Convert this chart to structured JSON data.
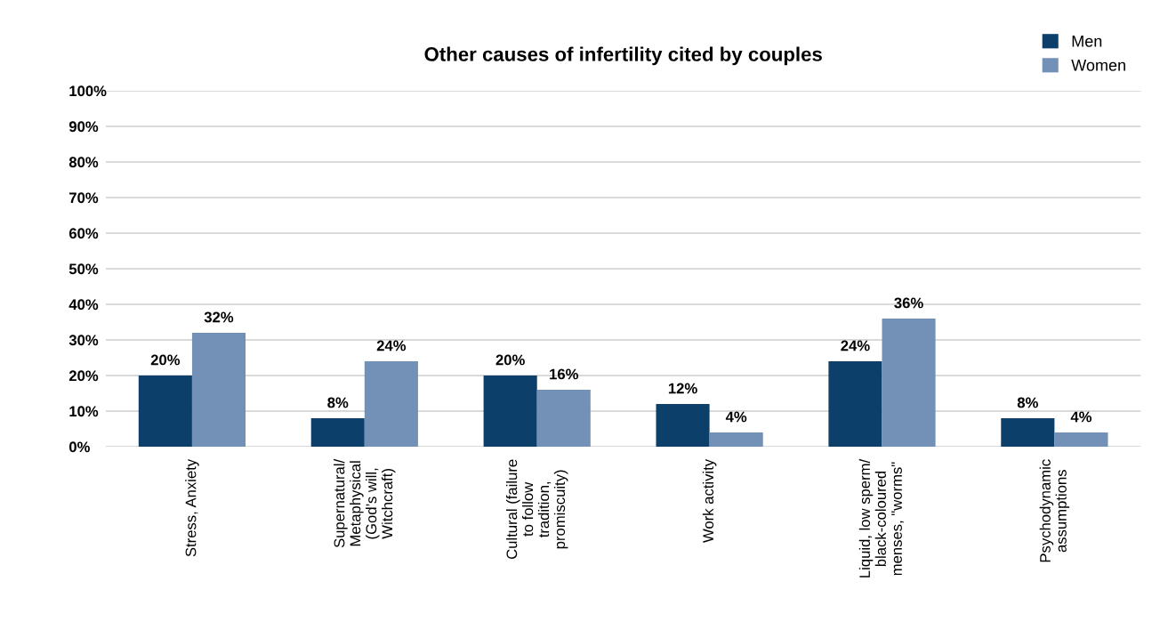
{
  "chart_data": {
    "type": "bar",
    "title": "Other causes of infertility cited by couples",
    "categories": [
      "Stress, Anxiety",
      "Supernatural/\nMetaphysical\n(God’s will,\nWitchcraft)",
      "Cultural (failure\nto follow\ntradition,\npromiscuity)",
      "Work activity",
      "Liquid, low sperm/\nblack-coloured\nmenses, \"worms\"",
      "Psychodynamic\nassumptions"
    ],
    "series": [
      {
        "name": "Men",
        "color": "#0d3f6b",
        "values": [
          20,
          8,
          20,
          12,
          24,
          8
        ],
        "value_labels": [
          "20%",
          "8%",
          "20%",
          "12%",
          "24%",
          "8%"
        ]
      },
      {
        "name": "Women",
        "color": "#7390b7",
        "values": [
          32,
          24,
          16,
          4,
          36,
          4
        ],
        "value_labels": [
          "32%",
          "24%",
          "16%",
          "4%",
          "36%",
          "4%"
        ]
      }
    ],
    "ylim": [
      0,
      100
    ],
    "yticks": [
      {
        "value": 0,
        "label": "0%"
      },
      {
        "value": 10,
        "label": "10%"
      },
      {
        "value": 20,
        "label": "20%"
      },
      {
        "value": 30,
        "label": "30%"
      },
      {
        "value": 40,
        "label": "40%"
      },
      {
        "value": 50,
        "label": "50%"
      },
      {
        "value": 60,
        "label": "60%"
      },
      {
        "value": 70,
        "label": "70%"
      },
      {
        "value": 80,
        "label": "80%"
      },
      {
        "value": 90,
        "label": "90%"
      },
      {
        "value": 100,
        "label": "100%"
      }
    ],
    "grid": "y",
    "legend": "top right"
  }
}
